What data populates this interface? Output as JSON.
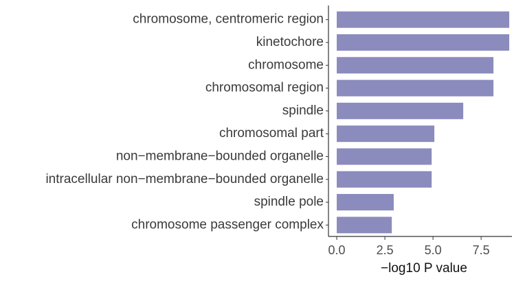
{
  "chart_data": {
    "type": "barh",
    "categories": [
      "chromosome, centromeric region",
      "kinetochore",
      "chromosome",
      "chromosomal region",
      "spindle",
      "chromosomal part",
      "non−membrane−bounded organelle",
      "intracellular non−membrane−bounded organelle",
      "spindle pole",
      "chromosome passenger complex"
    ],
    "values": [
      8.96,
      8.96,
      8.14,
      8.14,
      6.57,
      5.07,
      4.93,
      4.93,
      2.96,
      2.86
    ],
    "color": "#8b8bbd",
    "xlabel": "−log10 P value",
    "xlim": [
      -0.43,
      9.1
    ],
    "xticks": [
      {
        "value": 0,
        "label": "0.0"
      },
      2.5,
      {
        "value": 5,
        "label": "5.0"
      },
      7.5
    ]
  }
}
